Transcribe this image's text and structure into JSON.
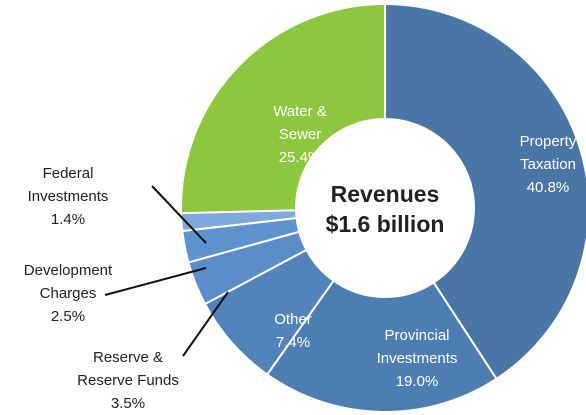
{
  "chart_data": {
    "type": "donut",
    "title": "Revenues",
    "subtitle": "$1.6 billion",
    "categories": [
      "Property\nTaxation",
      "Provincial\nInvestments",
      "Other",
      "Reserve &\nReserve Funds",
      "Development\nCharges",
      "Federal\nInvestments",
      "Water &\nSewer"
    ],
    "values": [
      40.8,
      19.0,
      7.4,
      3.5,
      2.5,
      1.4,
      25.4
    ],
    "value_labels": [
      "40.8%",
      "19.0%",
      "7.4%",
      "3.5%",
      "2.5%",
      "1.4%",
      "25.4%"
    ],
    "colors": [
      "#4a76a6",
      "#4d7db3",
      "#5283bb",
      "#5a8dca",
      "#5f93d0",
      "#7fa9dc",
      "#8dc63f"
    ]
  }
}
